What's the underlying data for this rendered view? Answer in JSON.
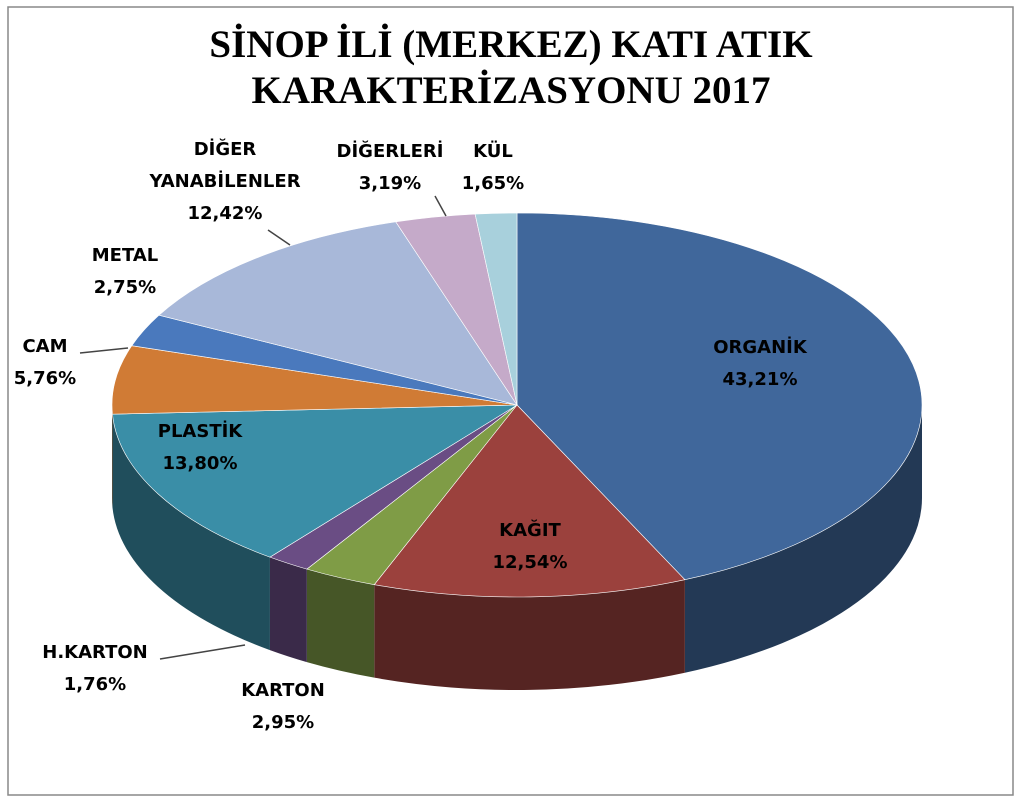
{
  "chart_data": {
    "type": "pie",
    "title": "SİNOP İLİ (MERKEZ) KATI ATIK KARAKTERİZASYONU 2017",
    "categories": [
      "ORGANİK",
      "KAĞIT",
      "KARTON",
      "H.KARTON",
      "PLASTİK",
      "CAM",
      "METAL",
      "DİĞER YANABİLENLER",
      "DİĞERLERİ",
      "KÜL"
    ],
    "values": [
      43.21,
      12.54,
      2.95,
      1.76,
      13.8,
      5.76,
      2.75,
      12.42,
      3.19,
      1.65
    ],
    "value_labels": [
      "43,21%",
      "12,54%",
      "2,95%",
      "1,76%",
      "13,80%",
      "5,76%",
      "2,75%",
      "12,42%",
      "3,19%",
      "1,65%"
    ],
    "colors": [
      "#40679b",
      "#9b413d",
      "#7f9c46",
      "#6a4d84",
      "#3a8ea7",
      "#d07b35",
      "#4a79bd",
      "#a8b8d9",
      "#c5aac9",
      "#a8d0dc"
    ]
  }
}
